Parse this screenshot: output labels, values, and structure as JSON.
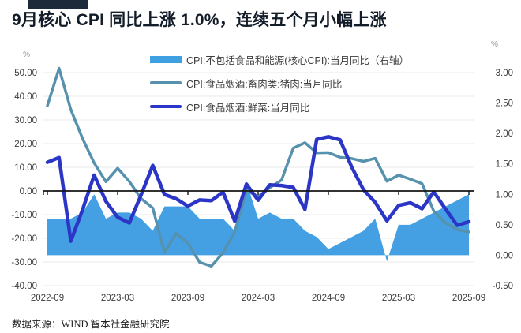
{
  "title": "9月核心 CPI 同比上涨 1.0%，连续五个月小幅上涨",
  "legend": {
    "items": [
      {
        "label": "CPI:不包括食品和能源(核心CPI):当月同比（右轴）",
        "color": "#3FA0E1",
        "swatch": "area"
      },
      {
        "label": "CPI:食品烟酒:畜肉类:猪肉:当月同比",
        "color": "#5691AD",
        "swatch": "line"
      },
      {
        "label": "CPI:食品烟酒:鲜菜:当月同比",
        "color": "#2C36C6",
        "swatch": "line"
      }
    ]
  },
  "footer": {
    "source": "数据来源：WIND 智本社金融研究院"
  },
  "chart_data": {
    "type": "area+line",
    "x": [
      "2022-09",
      "2022-10",
      "2022-11",
      "2022-12",
      "2023-01",
      "2023-02",
      "2023-03",
      "2023-04",
      "2023-05",
      "2023-06",
      "2023-07",
      "2023-08",
      "2023-09",
      "2023-10",
      "2023-11",
      "2023-12",
      "2024-01",
      "2024-02",
      "2024-03",
      "2024-04",
      "2024-05",
      "2024-06",
      "2024-07",
      "2024-08",
      "2024-09",
      "2024-10",
      "2024-11",
      "2024-12",
      "2025-01",
      "2025-02",
      "2025-03",
      "2025-04",
      "2025-05",
      "2025-06",
      "2025-07",
      "2025-08",
      "2025-09"
    ],
    "x_tick_labels": [
      "2022-09",
      "2023-03",
      "2023-09",
      "2024-03",
      "2024-09",
      "2025-03",
      "2025-09"
    ],
    "left_axis": {
      "unit": "%",
      "min": -40,
      "max": 50,
      "ticks": [
        "50.00",
        "40.00",
        "30.00",
        "20.00",
        "10.00",
        "0.00",
        "-10.00",
        "-20.00",
        "-30.00",
        "-40.00"
      ]
    },
    "right_axis": {
      "unit": "%",
      "min": -0.5,
      "max": 3.0,
      "ticks": [
        "3.00",
        "2.50",
        "2.00",
        "1.50",
        "1.00",
        "0.50",
        "0.00",
        "-0.50"
      ]
    },
    "grid": "horizontal",
    "legend_position": "top",
    "series": [
      {
        "name": "CPI:不包括食品和能源(核心CPI):当月同比（右轴）",
        "type": "area",
        "axis": "right",
        "color": "#44A0E2",
        "values": [
          0.6,
          0.6,
          0.6,
          0.7,
          1.0,
          0.6,
          0.7,
          0.7,
          0.6,
          0.4,
          0.8,
          0.8,
          0.8,
          0.6,
          0.6,
          0.6,
          0.4,
          1.2,
          0.6,
          0.7,
          0.6,
          0.6,
          0.4,
          0.3,
          0.1,
          0.2,
          0.3,
          0.4,
          0.6,
          -0.1,
          0.5,
          0.5,
          0.6,
          0.7,
          0.8,
          0.9,
          1.0
        ]
      },
      {
        "name": "CPI:食品烟酒:畜肉类:猪肉:当月同比",
        "type": "line",
        "axis": "left",
        "color": "#5691AD",
        "values": [
          36.0,
          51.8,
          34.4,
          22.2,
          11.8,
          3.9,
          9.6,
          4.0,
          -3.2,
          -7.2,
          -26.0,
          -17.9,
          -22.0,
          -30.1,
          -31.8,
          -26.1,
          -17.3,
          0.2,
          -2.4,
          1.4,
          4.6,
          18.1,
          20.4,
          16.1,
          16.2,
          14.2,
          13.7,
          12.5,
          13.8,
          4.1,
          6.7,
          5.0,
          3.1,
          -8.5,
          -13.5,
          -16.3,
          -17.3
        ]
      },
      {
        "name": "CPI:食品烟酒:鲜菜:当月同比",
        "type": "line",
        "axis": "left",
        "color": "#2C36C6",
        "values": [
          12.1,
          14.1,
          -21.2,
          -8.0,
          6.7,
          -4.4,
          -11.1,
          -13.5,
          -1.7,
          10.8,
          -1.5,
          -3.3,
          -6.4,
          -3.8,
          -4.1,
          -0.5,
          -12.7,
          2.9,
          -3.9,
          2.6,
          2.3,
          1.5,
          -7.8,
          21.8,
          22.9,
          21.6,
          10.0,
          0.5,
          -4.8,
          -12.6,
          -6.1,
          -5.0,
          -7.5,
          -0.4,
          -7.6,
          -14.5,
          -13.0
        ]
      }
    ]
  }
}
